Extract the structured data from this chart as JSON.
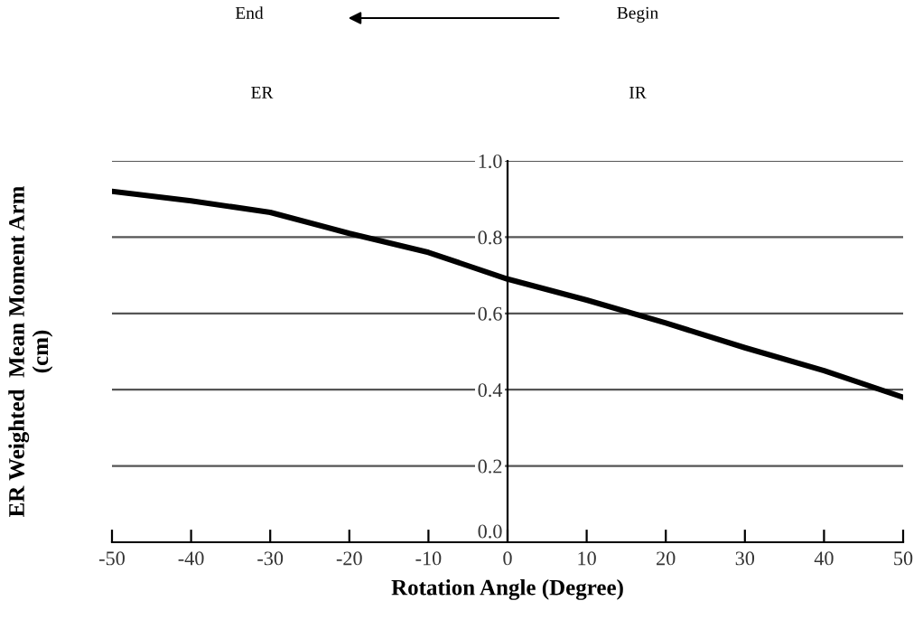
{
  "chart_data": {
    "type": "line",
    "xlabel": "Rotation Angle (Degree)",
    "ylabel": "ER Weighted  Mean Moment Arm\n(cm)",
    "annotations": [
      "End",
      "Begin",
      "ER",
      "IR"
    ],
    "x": [
      -50,
      -40,
      -30,
      -20,
      -10,
      0,
      10,
      20,
      30,
      40,
      50
    ],
    "series": [
      {
        "color": "#000000",
        "values": [
          0.92,
          0.895,
          0.865,
          0.81,
          0.76,
          0.69,
          0.635,
          0.575,
          0.51,
          0.45,
          0.38
        ]
      }
    ],
    "xlim": [
      -50,
      50
    ],
    "xticks": [
      -50,
      -40,
      -30,
      -20,
      -10,
      0,
      10,
      20,
      30,
      40,
      50
    ],
    "ylim": [
      0,
      1
    ],
    "yticks": [
      {
        "value": 0,
        "label": "0.0"
      },
      {
        "value": 0.2,
        "label": "0.2"
      },
      {
        "value": 0.4,
        "label": "0.4"
      },
      {
        "value": 0.6,
        "label": "0.6"
      },
      {
        "value": 0.8,
        "label": "0.8"
      },
      {
        "value": 1,
        "label": "1.0"
      }
    ],
    "grid": "y",
    "marker": "none",
    "line_style": "solid",
    "legend": false
  }
}
